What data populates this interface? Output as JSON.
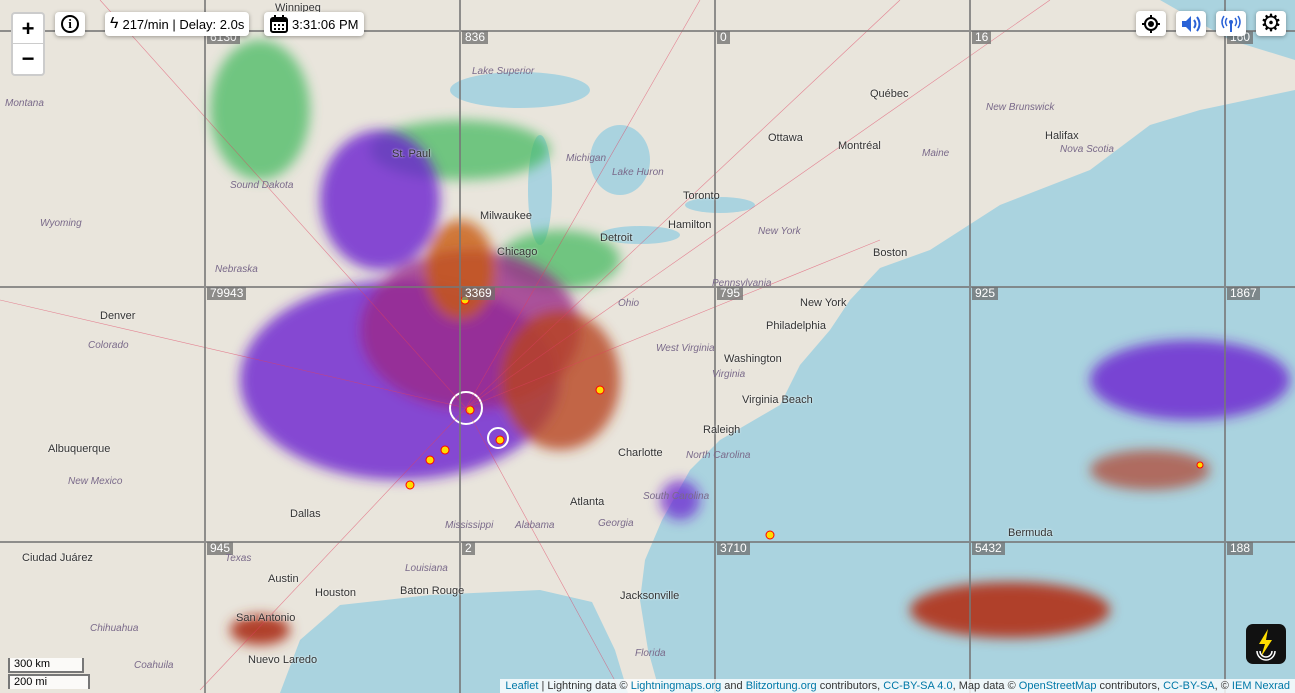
{
  "controls": {
    "zoom_in": "+",
    "zoom_out": "−",
    "rate": "217/min | Delay: 2.0s",
    "time": "3:31:06 PM"
  },
  "icons": [
    "info-icon",
    "lightning-icon",
    "calendar-icon",
    "locate-icon",
    "sound-icon",
    "station-icon",
    "gear-icon",
    "lightningmaps-logo-icon"
  ],
  "grid_labels": [
    [
      "6130",
      "836",
      "0",
      "16",
      "160"
    ],
    [
      "79943",
      "3369",
      "795",
      "925",
      "1867"
    ],
    [
      "945",
      "2",
      "3710",
      "5432",
      "188"
    ]
  ],
  "cities": [
    "Winnipeg",
    "Québec",
    "Ottawa",
    "Montréal",
    "Toronto",
    "Hamilton",
    "Detroit",
    "Milwaukee",
    "Chicago",
    "Denver",
    "New York",
    "Philadelphia",
    "Washington",
    "Virginia Beach",
    "Raleigh",
    "Charlotte",
    "Atlanta",
    "Boston",
    "Halifax",
    "Albuquerque",
    "Ciudad Juárez",
    "Austin",
    "Houston",
    "Baton Rouge",
    "Jacksonville",
    "Nuevo Laredo",
    "San Antonio",
    "Bermuda",
    "Dallas",
    "St. Paul"
  ],
  "regions": [
    "Montana",
    "Wyoming",
    "Nebraska",
    "Colorado",
    "New Mexico",
    "Texas",
    "Mississippi",
    "Alabama",
    "Georgia",
    "Louisiana",
    "Florida",
    "Chihuahua",
    "Coahuila",
    "North Carolina",
    "South Carolina",
    "Virginia",
    "West Virginia",
    "Ohio",
    "Pennsylvania",
    "New York",
    "Maine",
    "Michigan",
    "Lake Superior",
    "Lake Huron",
    "New Brunswick",
    "Nova Scotia",
    "Sound Dakota"
  ],
  "scale": {
    "km": "300 km",
    "mi": "200 mi"
  },
  "attribution": {
    "leaflet": "Leaflet",
    "t1": " | Lightning data © ",
    "lm": "Lightningmaps.org",
    "t2": " and ",
    "bo": "Blitzortung.org",
    "t3": " contributors, ",
    "cc1": "CC-BY-SA 4.0",
    "t4": ", Map data © ",
    "osm": "OpenStreetMap",
    "t5": " contributors, ",
    "cc2": "CC-BY-SA",
    "t6": ", © ",
    "iem": "IEM Nexrad"
  },
  "colors": {
    "ocean": "#aad3df",
    "land": "#e9e5dc",
    "strike_new": "#ffdd00",
    "strike_mid": "#d2691e",
    "strike_old": "#6a1fd0",
    "grid": "#777777"
  }
}
